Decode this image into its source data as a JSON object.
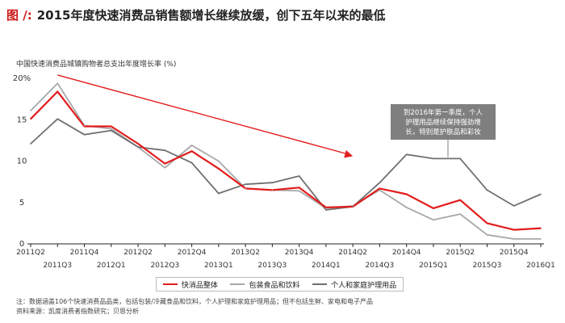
{
  "title": {
    "prefix": "图 /:",
    "text": "2015年度快速消费品销售额增长继续放缓，创下五年以来的最低"
  },
  "footnotes": {
    "note": "注：数据涵盖106个快速消费品品类，包括包装/冷藏食品和饮料，个人护理和家庭护理用品；但不包括生鲜、家电和电子产品",
    "source": "资料来源：凯度消费者指数研究；贝恩分析"
  },
  "chart_data": {
    "type": "line",
    "ylabel": "中国快速消费品城镇购物者总支出年度增长率 (%)",
    "ylim": [
      0,
      20
    ],
    "yticks": [
      "0",
      "5",
      "10",
      "15",
      "20%"
    ],
    "grid": false,
    "categories": [
      "2011Q2",
      "2011Q3",
      "2011Q4",
      "2012Q1",
      "2012Q2",
      "2012Q3",
      "2012Q4",
      "2013Q1",
      "2013Q2",
      "2013Q3",
      "2013Q4",
      "2014Q1",
      "2014Q2",
      "2014Q3",
      "2014Q4",
      "2015Q1",
      "2015Q2",
      "2015Q3",
      "2015Q4",
      "2016Q1"
    ],
    "series": [
      {
        "name": "快消品整体",
        "color": "#e31c1c",
        "values": [
          15.0,
          18.3,
          14.1,
          14.1,
          12.0,
          9.6,
          11.1,
          9.0,
          6.6,
          6.4,
          6.7,
          4.3,
          4.4,
          6.6,
          5.9,
          4.2,
          5.2,
          2.4,
          1.6,
          1.8
        ]
      },
      {
        "name": "包装食品和饮料",
        "color": "#a8a8a8",
        "values": [
          16.0,
          19.3,
          14.2,
          13.8,
          11.6,
          9.1,
          11.8,
          9.9,
          6.6,
          6.4,
          6.3,
          4.2,
          4.5,
          6.4,
          4.3,
          2.8,
          3.5,
          1.0,
          0.5,
          0.5
        ]
      },
      {
        "name": "个人和家庭护理用品",
        "color": "#707070",
        "values": [
          12.0,
          15.0,
          13.1,
          13.6,
          11.6,
          11.2,
          9.7,
          6.0,
          7.1,
          7.3,
          8.1,
          4.0,
          4.4,
          7.3,
          10.7,
          10.2,
          10.2,
          6.4,
          4.5,
          5.9
        ]
      }
    ],
    "annotation": {
      "text": [
        "到2016年第一季度，个人",
        "护理用品继续保持强劲增",
        "长，特别是护肤品和彩妆"
      ],
      "background": "#7f7f7f",
      "color": "#ffffff"
    },
    "trend_arrow": {
      "color": "#e31c1c",
      "from_category": "2011Q3",
      "from_value": 20.3,
      "to_category": "2014Q2",
      "to_value": 10.5
    },
    "legend_position": "bottom"
  }
}
